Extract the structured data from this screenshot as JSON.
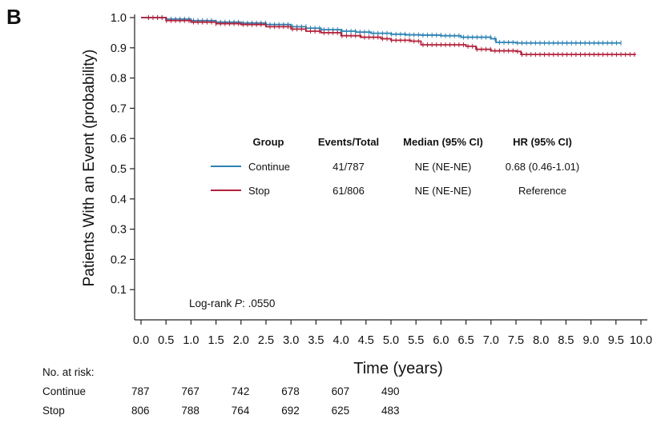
{
  "panel_label": "B",
  "chart_data": {
    "type": "line",
    "subtype": "kaplan-meier",
    "xlabel": "Time (years)",
    "ylabel": "Patients With an Event (probability)",
    "xlim": [
      0,
      10
    ],
    "ylim": [
      0,
      1.0
    ],
    "x_ticks": [
      "0.0",
      "0.5",
      "1.0",
      "1.5",
      "2.0",
      "2.5",
      "3.0",
      "3.5",
      "4.0",
      "4.5",
      "5.0",
      "5.5",
      "6.0",
      "6.5",
      "7.0",
      "7.5",
      "8.0",
      "8.5",
      "9.0",
      "9.5",
      "10.0"
    ],
    "y_ticks": [
      "0.1",
      "0.2",
      "0.3",
      "0.4",
      "0.5",
      "0.6",
      "0.7",
      "0.8",
      "0.9",
      "1.0"
    ],
    "annotation": {
      "prefix": "Log-rank ",
      "p_label": "P",
      "suffix": ": .0550"
    },
    "series": [
      {
        "name": "Continue",
        "color": "#2a82b4",
        "x": [
          0,
          0.5,
          1.0,
          1.5,
          2.0,
          2.5,
          3.0,
          3.3,
          3.6,
          4.0,
          4.3,
          4.6,
          5.0,
          5.3,
          5.6,
          6.0,
          6.4,
          6.8,
          7.0,
          7.1,
          7.5,
          8.0,
          8.5,
          9.0,
          9.6
        ],
        "y": [
          1.0,
          0.995,
          0.99,
          0.985,
          0.982,
          0.977,
          0.97,
          0.965,
          0.96,
          0.955,
          0.952,
          0.948,
          0.945,
          0.943,
          0.942,
          0.94,
          0.935,
          0.935,
          0.93,
          0.918,
          0.916,
          0.916,
          0.916,
          0.916,
          0.916
        ]
      },
      {
        "name": "Stop",
        "color": "#b2213a",
        "x": [
          0,
          0.5,
          1.0,
          1.5,
          2.0,
          2.5,
          3.0,
          3.3,
          3.6,
          4.0,
          4.4,
          4.8,
          5.0,
          5.4,
          5.6,
          6.0,
          6.5,
          6.7,
          7.0,
          7.5,
          7.6,
          8.0,
          8.5,
          9.0,
          9.5,
          9.9
        ],
        "y": [
          1.0,
          0.99,
          0.985,
          0.98,
          0.977,
          0.97,
          0.962,
          0.955,
          0.95,
          0.94,
          0.935,
          0.93,
          0.925,
          0.922,
          0.91,
          0.91,
          0.905,
          0.895,
          0.89,
          0.888,
          0.878,
          0.878,
          0.878,
          0.878,
          0.878,
          0.878
        ]
      }
    ],
    "legend": {
      "headers": [
        "Group",
        "Events/Total",
        "Median (95% CI)",
        "HR (95% CI)"
      ],
      "rows": [
        {
          "group": "Continue",
          "events": "41/787",
          "median": "NE (NE-NE)",
          "hr": "0.68 (0.46-1.01)",
          "color": "#2a82b4"
        },
        {
          "group": "Stop",
          "events": "61/806",
          "median": "NE (NE-NE)",
          "hr": "Reference",
          "color": "#b2213a"
        }
      ]
    }
  },
  "risk_table": {
    "title": "No. at risk:",
    "time_points": [
      0,
      1,
      2,
      3,
      4,
      5
    ],
    "rows": [
      {
        "label": "Continue",
        "values": [
          "787",
          "767",
          "742",
          "678",
          "607",
          "490"
        ]
      },
      {
        "label": "Stop",
        "values": [
          "806",
          "788",
          "764",
          "692",
          "625",
          "483"
        ]
      }
    ]
  }
}
